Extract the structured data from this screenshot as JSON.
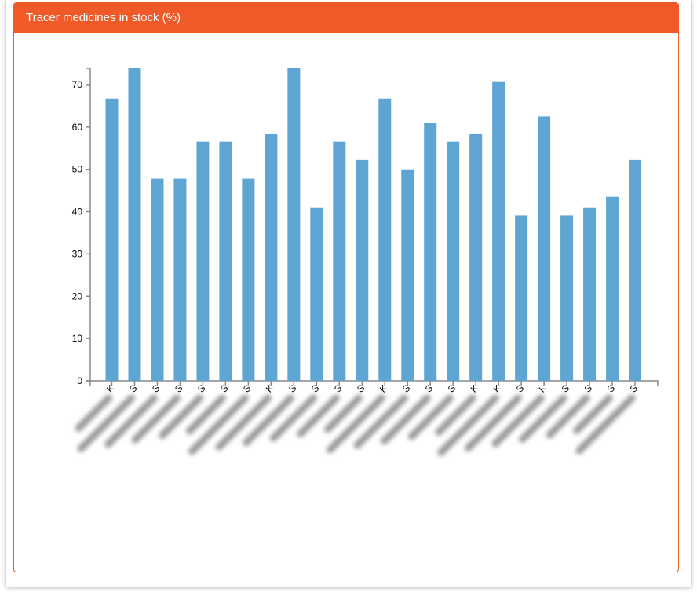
{
  "panel": {
    "title": "Tracer medicines in stock (%)"
  },
  "chart_data": {
    "type": "bar",
    "title": "Tracer medicines in stock (%)",
    "xlabel": "",
    "ylabel": "",
    "ylim": [
      0,
      74
    ],
    "yticks": [
      0,
      10,
      20,
      30,
      40,
      50,
      60,
      70
    ],
    "categories": [
      "K",
      "S",
      "S",
      "S",
      "S",
      "S",
      "S",
      "K",
      "S",
      "S",
      "S",
      "S",
      "K",
      "S",
      "S",
      "S",
      "K",
      "K",
      "S",
      "K",
      "S",
      "S",
      "S",
      "S"
    ],
    "values": [
      66.7,
      73.9,
      47.8,
      47.8,
      56.5,
      56.5,
      47.8,
      58.3,
      73.9,
      40.9,
      56.5,
      52.2,
      66.7,
      50.0,
      60.9,
      56.5,
      58.3,
      70.8,
      39.1,
      62.5,
      39.1,
      40.9,
      43.5,
      52.2
    ],
    "bar_color": "#5fa5d3",
    "grid": false,
    "legend": "none"
  }
}
